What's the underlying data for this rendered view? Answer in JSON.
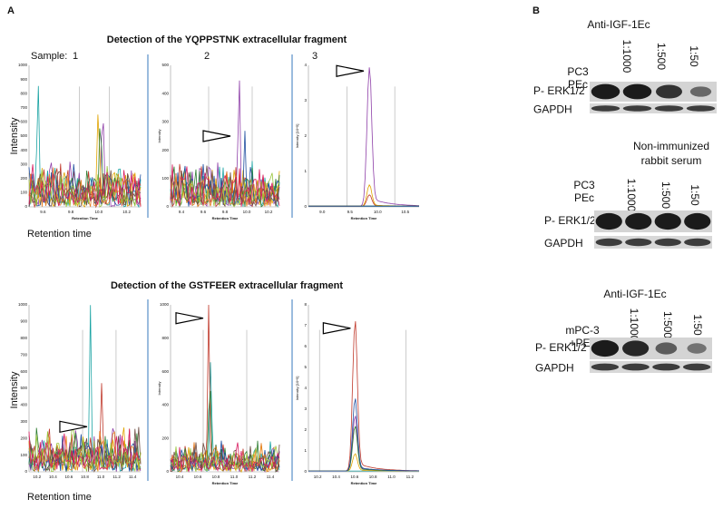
{
  "panel_a": {
    "label": "A",
    "rows": [
      {
        "title": "Detection of the YQPPSTNK extracellular fragment",
        "sample_label": "Sample:",
        "y_label": "Intensity",
        "x_label": "Retention time",
        "plots": [
          {
            "number": "1",
            "yticks": [
              "1000",
              "900",
              "800",
              "700",
              "600",
              "500",
              "400",
              "300",
              "200",
              "100",
              "0"
            ],
            "xticks": [
              "9.6",
              "9.8",
              "10.0",
              "10.2"
            ],
            "x_title": "Retention Time"
          },
          {
            "number": "2",
            "yticks": [
              "500",
              "400",
              "300",
              "200",
              "100",
              "0"
            ],
            "xticks": [
              "9.4",
              "9.6",
              "9.8",
              "10.0",
              "10.2"
            ],
            "x_title": "Retention Time",
            "y_title": "Intensity"
          },
          {
            "number": "3",
            "yticks": [
              "4",
              "3",
              "2",
              "1",
              "0"
            ],
            "xticks": [
              "9.0",
              "9.5",
              "10.0",
              "10.5"
            ],
            "x_title": "Retention Time",
            "y_title": "Intensity [10^5]"
          }
        ]
      },
      {
        "title": "Detection of the GSTFEER extracellular fragment",
        "y_label": "Intensity",
        "x_label": "Retention time",
        "plots": [
          {
            "yticks": [
              "1000",
              "900",
              "800",
              "700",
              "600",
              "500",
              "400",
              "300",
              "200",
              "100",
              "0"
            ],
            "xticks": [
              "10.2",
              "10.4",
              "10.6",
              "10.8",
              "11.0",
              "11.2",
              "11.4"
            ]
          },
          {
            "yticks": [
              "1000",
              "800",
              "600",
              "400",
              "200",
              "0"
            ],
            "xticks": [
              "10.4",
              "10.6",
              "10.8",
              "11.0",
              "11.2",
              "11.4"
            ],
            "x_title": "Retention Time",
            "y_title": "Intensity"
          },
          {
            "yticks": [
              "8",
              "7",
              "6",
              "5",
              "4",
              "3",
              "2",
              "1",
              "0"
            ],
            "xticks": [
              "10.2",
              "10.4",
              "10.6",
              "10.8",
              "11.0",
              "11.2"
            ],
            "x_title": "Retention Time",
            "y_title": "Intensity [10^5]"
          }
        ]
      }
    ]
  },
  "panel_b": {
    "label": "B",
    "blots": [
      {
        "header": [
          "Anti-IGF-1Ec"
        ],
        "control": [
          "PC3",
          "PEc"
        ],
        "dilutions": [
          "1:1000",
          "1:500",
          "1:50"
        ],
        "rows": [
          "P- ERK1/2",
          "GAPDH"
        ]
      },
      {
        "header": [
          "Non-immunized",
          "rabbit serum"
        ],
        "control": [
          "PC3",
          "PEc"
        ],
        "dilutions": [
          "1:1000",
          "1:500",
          "1:50"
        ],
        "rows": [
          "P- ERK1/2",
          "GAPDH"
        ]
      },
      {
        "header": [
          "Anti-IGF-1Ec"
        ],
        "control": [
          "mPC-3",
          "+PEc"
        ],
        "dilutions": [
          "1:1000",
          "1:500",
          "1:50"
        ],
        "rows": [
          "P- ERK1/2",
          "GAPDH"
        ]
      }
    ]
  }
}
